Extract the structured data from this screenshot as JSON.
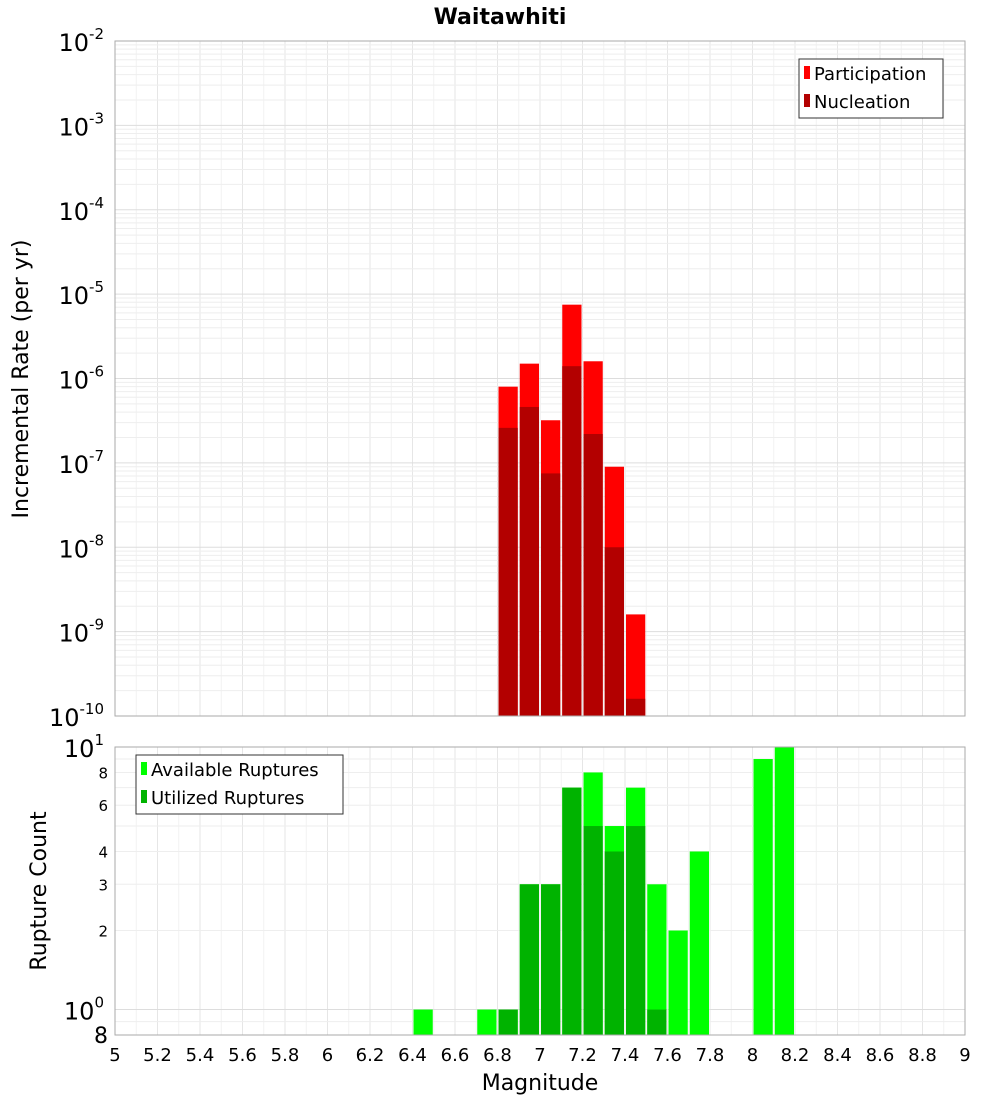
{
  "title": "Waitawhiti",
  "xlabel": "Magnitude",
  "x_ticks": [
    "5",
    "5.2",
    "5.4",
    "5.6",
    "5.8",
    "6",
    "6.2",
    "6.4",
    "6.6",
    "6.8",
    "7",
    "7.2",
    "7.4",
    "7.6",
    "7.8",
    "8",
    "8.2",
    "8.4",
    "8.6",
    "8.8",
    "9"
  ],
  "top_y_ticks": [
    {
      "base": "10",
      "exp": "-2"
    },
    {
      "base": "10",
      "exp": "-3"
    },
    {
      "base": "10",
      "exp": "-4"
    },
    {
      "base": "10",
      "exp": "-5"
    },
    {
      "base": "10",
      "exp": "-6"
    },
    {
      "base": "10",
      "exp": "-7"
    },
    {
      "base": "10",
      "exp": "-8"
    },
    {
      "base": "10",
      "exp": "-9"
    },
    {
      "base": "10",
      "exp": "-10"
    }
  ],
  "bottom_y_ticks": {
    "major": [
      {
        "base": "10",
        "exp": "1"
      },
      {
        "base": "10",
        "exp": "0"
      }
    ],
    "minor": [
      "8",
      "6",
      "4",
      "3",
      "2",
      "8"
    ]
  },
  "colors": {
    "participation": "#ff0000",
    "nucleation": "#b30000",
    "available": "#00ff00",
    "utilized": "#00b300"
  },
  "chart_data": [
    {
      "type": "bar",
      "title": "Waitawhiti",
      "xlabel": "Magnitude",
      "ylabel": "Incremental Rate (per yr)",
      "yscale": "log",
      "xlim": [
        5,
        9
      ],
      "ylim": [
        1e-10,
        0.01
      ],
      "bin_width": 0.1,
      "grid": true,
      "legend_position": "top-right",
      "series": [
        {
          "name": "Participation",
          "x": [
            6.85,
            6.95,
            7.05,
            7.15,
            7.25,
            7.35,
            7.45
          ],
          "values": [
            8e-07,
            1.5e-06,
            3.2e-07,
            7.5e-06,
            1.6e-06,
            9e-08,
            1.6e-09
          ]
        },
        {
          "name": "Nucleation",
          "x": [
            6.85,
            6.95,
            7.05,
            7.15,
            7.25,
            7.35,
            7.45
          ],
          "values": [
            2.6e-07,
            4.6e-07,
            7.5e-08,
            1.4e-06,
            2.2e-07,
            1e-08,
            1.6e-10
          ]
        }
      ]
    },
    {
      "type": "bar",
      "xlabel": "Magnitude",
      "ylabel": "Rupture Count",
      "yscale": "log",
      "xlim": [
        5,
        9
      ],
      "ylim": [
        0.8,
        10
      ],
      "bin_width": 0.1,
      "grid": true,
      "legend_position": "top-left",
      "series": [
        {
          "name": "Available Ruptures",
          "x": [
            6.45,
            6.75,
            6.85,
            6.95,
            7.05,
            7.15,
            7.25,
            7.35,
            7.45,
            7.55,
            7.65,
            7.75,
            8.05,
            8.15
          ],
          "values": [
            1,
            1,
            1,
            3,
            3,
            7,
            8,
            5,
            7,
            3,
            2,
            4,
            9,
            10
          ]
        },
        {
          "name": "Utilized Ruptures",
          "x": [
            6.85,
            6.95,
            7.05,
            7.15,
            7.25,
            7.35,
            7.45,
            7.55
          ],
          "values": [
            1,
            3,
            3,
            7,
            5,
            4,
            5,
            1
          ]
        }
      ]
    }
  ]
}
